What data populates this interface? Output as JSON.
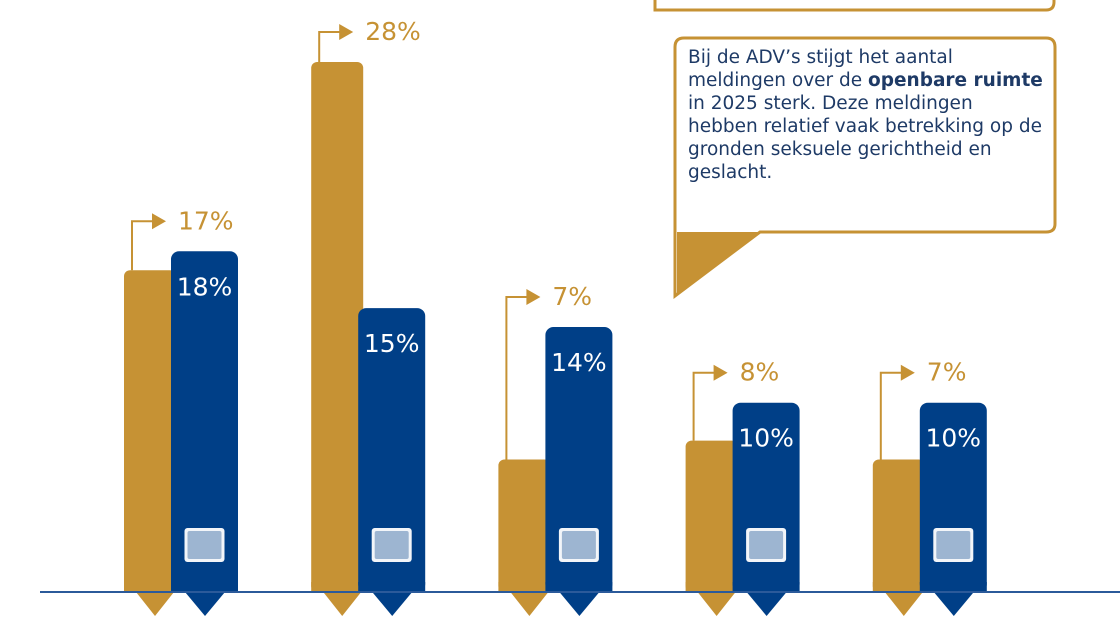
{
  "chart_data": {
    "type": "bar",
    "categories": [
      null,
      null,
      null,
      null,
      null
    ],
    "series": [
      {
        "color": "#c69234",
        "values": [
          17,
          28,
          7,
          8,
          7
        ],
        "value_labels": [
          "17%",
          "28%",
          "7%",
          "8%",
          "7%"
        ]
      },
      {
        "color": "#003f87",
        "values": [
          18,
          15,
          14,
          10,
          10
        ],
        "value_labels": [
          "18%",
          "15%",
          "14%",
          "10%",
          "10%"
        ]
      }
    ],
    "annotation": {
      "parts": [
        "Bij de ADV’s stijgt het aantal meldingen over de ",
        "openbare ruimte",
        " in 2025 sterk. Deze meldingen hebben relatief vaak betrekking op de gronden seksuele gerichtheid en geslacht."
      ]
    }
  }
}
